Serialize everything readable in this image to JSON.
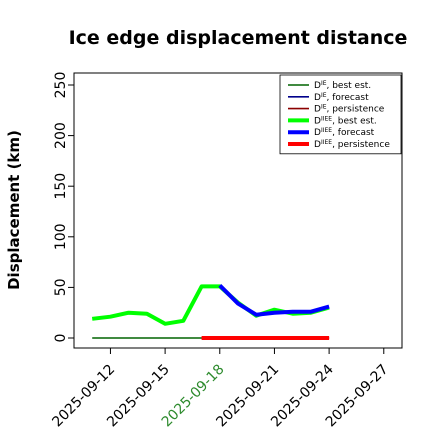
{
  "chart_data": {
    "type": "line",
    "title": "Ice edge displacement distance",
    "ylabel": "Displacement (km)",
    "xlabel": "",
    "ylim": [
      0,
      260
    ],
    "xlim": [
      "2025-09-10",
      "2025-09-28"
    ],
    "yticks": [
      "0",
      "50",
      "100",
      "150",
      "200",
      "250"
    ],
    "xticks": [
      {
        "date": "2025-09-12",
        "label": "2025-09-12",
        "color": "#000000"
      },
      {
        "date": "2025-09-15",
        "label": "2025-09-15",
        "color": "#000000"
      },
      {
        "date": "2025-09-18",
        "label": "2025-09-18",
        "color": "#2e8b2e"
      },
      {
        "date": "2025-09-21",
        "label": "2025-09-21",
        "color": "#000000"
      },
      {
        "date": "2025-09-24",
        "label": "2025-09-24",
        "color": "#000000"
      },
      {
        "date": "2025-09-27",
        "label": "2025-09-27",
        "color": "#000000"
      }
    ],
    "grid": false,
    "legend_position": "top-right",
    "series": [
      {
        "name": "D^IE, best est.",
        "color": "#006400",
        "width": "thin",
        "x": [
          "2025-09-11",
          "2025-09-17.9"
        ],
        "y": [
          0,
          0
        ]
      },
      {
        "name": "D^IE, forecast",
        "color": "#00008b",
        "width": "thin",
        "x": [
          "2025-09-17.9",
          "2025-09-24"
        ],
        "y": [
          0,
          0
        ]
      },
      {
        "name": "D^IE, persistence",
        "color": "#8b0000",
        "width": "thin",
        "x": [
          "2025-09-17",
          "2025-09-24"
        ],
        "y": [
          0,
          0
        ]
      },
      {
        "name": "D^IIEE, best est.",
        "color": "#00ff00",
        "width": "thick",
        "x": [
          "2025-09-11",
          "2025-09-12",
          "2025-09-13",
          "2025-09-14",
          "2025-09-15",
          "2025-09-16",
          "2025-09-17",
          "2025-09-18",
          "2025-09-19",
          "2025-09-20",
          "2025-09-21",
          "2025-09-22",
          "2025-09-23",
          "2025-09-24"
        ],
        "y": [
          19,
          21,
          25,
          24,
          14,
          17,
          51,
          51,
          35,
          22,
          28,
          24,
          25,
          30
        ]
      },
      {
        "name": "D^IIEE, forecast",
        "color": "#0000ff",
        "width": "thick",
        "x": [
          "2025-09-18",
          "2025-09-19",
          "2025-09-20",
          "2025-09-21",
          "2025-09-22",
          "2025-09-23",
          "2025-09-24"
        ],
        "y": [
          52,
          34,
          23,
          25,
          26,
          26,
          31
        ]
      },
      {
        "name": "D^IIEE, persistence",
        "color": "#ff0000",
        "width": "thick",
        "x": [
          "2025-09-17",
          "2025-09-24"
        ],
        "y": [
          0,
          0
        ]
      }
    ],
    "legend": [
      {
        "base": "D",
        "sup": "IE",
        "suffix": ", best est.",
        "color": "#006400",
        "width": "thin"
      },
      {
        "base": "D",
        "sup": "IE",
        "suffix": ", forecast",
        "color": "#00008b",
        "width": "thin"
      },
      {
        "base": "D",
        "sup": "IE",
        "suffix": ", persistence",
        "color": "#8b0000",
        "width": "thin"
      },
      {
        "base": "D",
        "sup": "IIEE",
        "suffix": ", best est.",
        "color": "#00ff00",
        "width": "thick"
      },
      {
        "base": "D",
        "sup": "IIEE",
        "suffix": ", forecast",
        "color": "#0000ff",
        "width": "thick"
      },
      {
        "base": "D",
        "sup": "IIEE",
        "suffix": ", persistence",
        "color": "#ff0000",
        "width": "thick"
      }
    ]
  }
}
